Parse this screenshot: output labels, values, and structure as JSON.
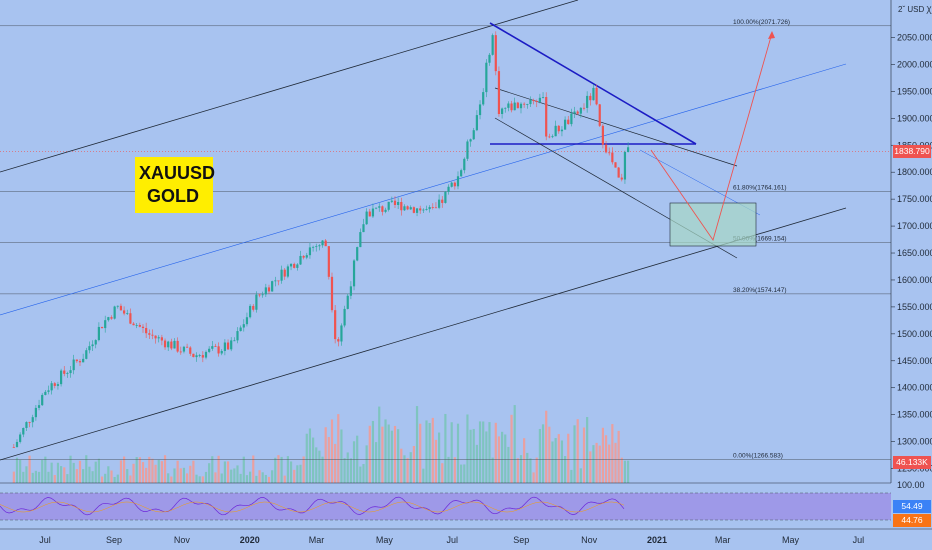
{
  "header": {
    "currency": "USD"
  },
  "overlay_label": {
    "line1": "XAUUSD",
    "line2": "GOLD"
  },
  "price_axis": {
    "ticks": [
      "2050.000",
      "2000.000",
      "1950.000",
      "1900.000",
      "1850.000",
      "1800.000",
      "1750.000",
      "1700.000",
      "1650.000",
      "1600.000",
      "1550.000",
      "1500.000",
      "1450.000",
      "1400.000",
      "1350.000",
      "1300.000",
      "1250.000"
    ],
    "current_price": "1838.790",
    "volume_label": "46.133K"
  },
  "rsi_axis": {
    "ticks": [
      "100.00"
    ],
    "value_primary": "54.49",
    "value_secondary": "44.76"
  },
  "time_axis": {
    "labels": [
      "Jul",
      "Sep",
      "Nov",
      "2020",
      "Mar",
      "May",
      "Jul",
      "Sep",
      "Nov",
      "2021",
      "Mar",
      "May",
      "Jul"
    ]
  },
  "fib_levels": [
    "100.00%(2071.726)",
    "61.80%(1764.161)",
    "50.00%(1669.154)",
    "38.20%(1574.147)",
    "0.00%(1266.583)"
  ],
  "colors": {
    "background": "#a8c3f0",
    "candle_up": "#26a69a",
    "candle_down": "#ef5350",
    "price_badge": "#ef5350",
    "label_bg": "#ffee00",
    "rsi_band": "#9b8be6",
    "trend_line": "#1c1cc4",
    "projection": "#ef5350"
  },
  "chart_data": {
    "type": "candlestick",
    "title": "",
    "instrument": "XAUUSD",
    "ylim": [
      1245,
      2095
    ],
    "x_range": [
      "2019-06",
      "2021-07"
    ],
    "grid": false,
    "close_path": [
      [
        "2019-06-03",
        1290
      ],
      [
        "2019-07-01",
        1395
      ],
      [
        "2019-08-05",
        1460
      ],
      [
        "2019-08-20",
        1515
      ],
      [
        "2019-09-04",
        1550
      ],
      [
        "2019-10-01",
        1500
      ],
      [
        "2019-11-12",
        1460
      ],
      [
        "2019-12-16",
        1478
      ],
      [
        "2020-01-08",
        1570
      ],
      [
        "2020-02-24",
        1660
      ],
      [
        "2020-03-09",
        1670
      ],
      [
        "2020-03-19",
        1475
      ],
      [
        "2020-04-14",
        1725
      ],
      [
        "2020-05-15",
        1740
      ],
      [
        "2020-06-15",
        1725
      ],
      [
        "2020-07-08",
        1800
      ],
      [
        "2020-07-27",
        1935
      ],
      [
        "2020-08-06",
        2060
      ],
      [
        "2020-08-12",
        1915
      ],
      [
        "2020-09-20",
        1940
      ],
      [
        "2020-09-24",
        1865
      ],
      [
        "2020-10-20",
        1905
      ],
      [
        "2020-11-06",
        1950
      ],
      [
        "2020-11-10",
        1880
      ],
      [
        "2020-11-24",
        1805
      ],
      [
        "2020-11-30",
        1770
      ],
      [
        "2020-12-02",
        1830
      ],
      [
        "2020-12-07",
        1838.79
      ]
    ],
    "fibonacci": [
      {
        "level": "100.00%",
        "price": 2071.726
      },
      {
        "level": "61.80%",
        "price": 1764.161
      },
      {
        "level": "50.00%",
        "price": 1669.154
      },
      {
        "level": "38.20%",
        "price": 1574.147
      },
      {
        "level": "0.00%",
        "price": 1266.583
      }
    ],
    "last_price": 1838.79,
    "volume_last": "46.133K",
    "rsi": {
      "upper": 100.0,
      "last": 54.49,
      "signal": 44.76
    }
  }
}
